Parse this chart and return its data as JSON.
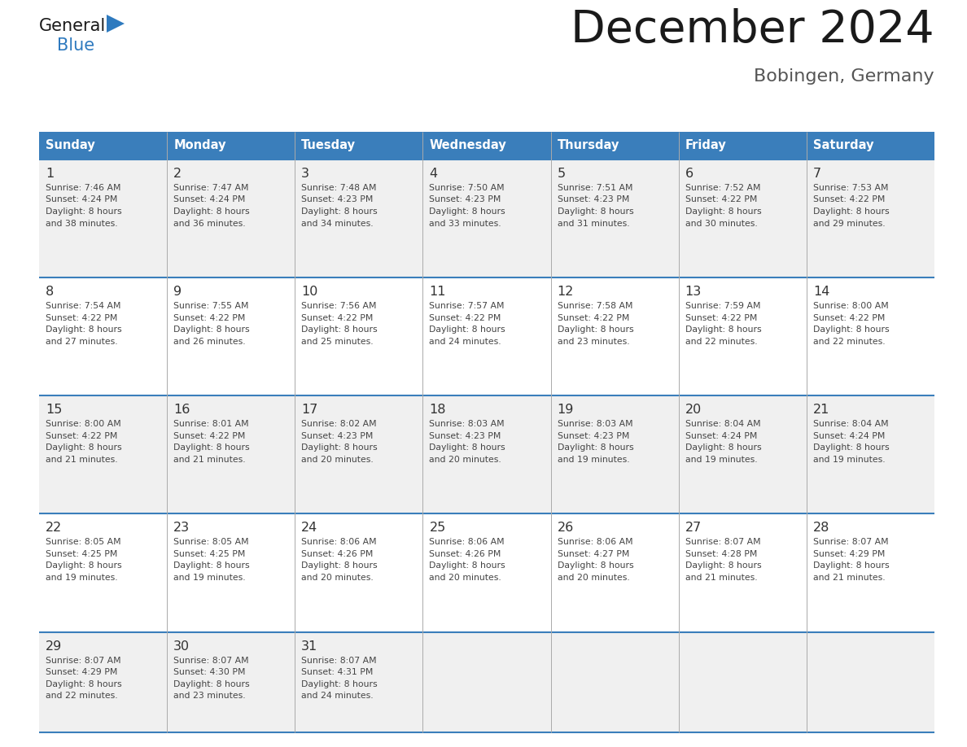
{
  "title": "December 2024",
  "subtitle": "Bobingen, Germany",
  "header_color": "#3A7EBB",
  "header_text_color": "#FFFFFF",
  "days_of_week": [
    "Sunday",
    "Monday",
    "Tuesday",
    "Wednesday",
    "Thursday",
    "Friday",
    "Saturday"
  ],
  "cell_bg_week_odd": "#F0F0F0",
  "cell_bg_week_even": "#FFFFFF",
  "row_line_color": "#3A7EBB",
  "grid_line_color": "#AAAAAA",
  "day_num_color": "#333333",
  "info_text_color": "#444444",
  "logo_general_color": "#1a1a1a",
  "logo_blue_color": "#2E7ABF",
  "title_color": "#1a1a1a",
  "subtitle_color": "#555555",
  "weeks": [
    [
      {
        "day": 1,
        "sunrise": "7:46 AM",
        "sunset": "4:24 PM",
        "dl_min": "38"
      },
      {
        "day": 2,
        "sunrise": "7:47 AM",
        "sunset": "4:24 PM",
        "dl_min": "36"
      },
      {
        "day": 3,
        "sunrise": "7:48 AM",
        "sunset": "4:23 PM",
        "dl_min": "34"
      },
      {
        "day": 4,
        "sunrise": "7:50 AM",
        "sunset": "4:23 PM",
        "dl_min": "33"
      },
      {
        "day": 5,
        "sunrise": "7:51 AM",
        "sunset": "4:23 PM",
        "dl_min": "31"
      },
      {
        "day": 6,
        "sunrise": "7:52 AM",
        "sunset": "4:22 PM",
        "dl_min": "30"
      },
      {
        "day": 7,
        "sunrise": "7:53 AM",
        "sunset": "4:22 PM",
        "dl_min": "29"
      }
    ],
    [
      {
        "day": 8,
        "sunrise": "7:54 AM",
        "sunset": "4:22 PM",
        "dl_min": "27"
      },
      {
        "day": 9,
        "sunrise": "7:55 AM",
        "sunset": "4:22 PM",
        "dl_min": "26"
      },
      {
        "day": 10,
        "sunrise": "7:56 AM",
        "sunset": "4:22 PM",
        "dl_min": "25"
      },
      {
        "day": 11,
        "sunrise": "7:57 AM",
        "sunset": "4:22 PM",
        "dl_min": "24"
      },
      {
        "day": 12,
        "sunrise": "7:58 AM",
        "sunset": "4:22 PM",
        "dl_min": "23"
      },
      {
        "day": 13,
        "sunrise": "7:59 AM",
        "sunset": "4:22 PM",
        "dl_min": "22"
      },
      {
        "day": 14,
        "sunrise": "8:00 AM",
        "sunset": "4:22 PM",
        "dl_min": "22"
      }
    ],
    [
      {
        "day": 15,
        "sunrise": "8:00 AM",
        "sunset": "4:22 PM",
        "dl_min": "21"
      },
      {
        "day": 16,
        "sunrise": "8:01 AM",
        "sunset": "4:22 PM",
        "dl_min": "21"
      },
      {
        "day": 17,
        "sunrise": "8:02 AM",
        "sunset": "4:23 PM",
        "dl_min": "20"
      },
      {
        "day": 18,
        "sunrise": "8:03 AM",
        "sunset": "4:23 PM",
        "dl_min": "20"
      },
      {
        "day": 19,
        "sunrise": "8:03 AM",
        "sunset": "4:23 PM",
        "dl_min": "19"
      },
      {
        "day": 20,
        "sunrise": "8:04 AM",
        "sunset": "4:24 PM",
        "dl_min": "19"
      },
      {
        "day": 21,
        "sunrise": "8:04 AM",
        "sunset": "4:24 PM",
        "dl_min": "19"
      }
    ],
    [
      {
        "day": 22,
        "sunrise": "8:05 AM",
        "sunset": "4:25 PM",
        "dl_min": "19"
      },
      {
        "day": 23,
        "sunrise": "8:05 AM",
        "sunset": "4:25 PM",
        "dl_min": "19"
      },
      {
        "day": 24,
        "sunrise": "8:06 AM",
        "sunset": "4:26 PM",
        "dl_min": "20"
      },
      {
        "day": 25,
        "sunrise": "8:06 AM",
        "sunset": "4:26 PM",
        "dl_min": "20"
      },
      {
        "day": 26,
        "sunrise": "8:06 AM",
        "sunset": "4:27 PM",
        "dl_min": "20"
      },
      {
        "day": 27,
        "sunrise": "8:07 AM",
        "sunset": "4:28 PM",
        "dl_min": "21"
      },
      {
        "day": 28,
        "sunrise": "8:07 AM",
        "sunset": "4:29 PM",
        "dl_min": "21"
      }
    ],
    [
      {
        "day": 29,
        "sunrise": "8:07 AM",
        "sunset": "4:29 PM",
        "dl_min": "22"
      },
      {
        "day": 30,
        "sunrise": "8:07 AM",
        "sunset": "4:30 PM",
        "dl_min": "23"
      },
      {
        "day": 31,
        "sunrise": "8:07 AM",
        "sunset": "4:31 PM",
        "dl_min": "24"
      },
      null,
      null,
      null,
      null
    ]
  ]
}
